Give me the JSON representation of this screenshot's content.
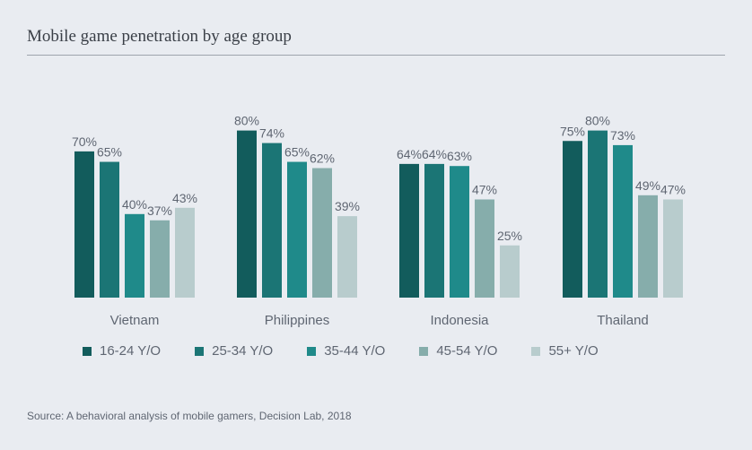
{
  "header": {
    "title": "Mobile game penetration by age group"
  },
  "source": "Source: A behavioral analysis of mobile gamers, Decision Lab, 2018",
  "colors": [
    "#125c5c",
    "#1b7575",
    "#1f8a8a",
    "#86adab",
    "#b8cccd"
  ],
  "chart_data": {
    "type": "bar",
    "title": "Mobile game penetration by age group",
    "categories": [
      "Vietnam",
      "Philippines",
      "Indonesia",
      "Thailand"
    ],
    "series": [
      {
        "name": "16-24 Y/O",
        "values": [
          70,
          80,
          64,
          75
        ]
      },
      {
        "name": "25-34 Y/O",
        "values": [
          65,
          74,
          64,
          80
        ]
      },
      {
        "name": "35-44 Y/O",
        "values": [
          40,
          65,
          63,
          73
        ]
      },
      {
        "name": "45-54 Y/O",
        "values": [
          37,
          62,
          47,
          49
        ]
      },
      {
        "name": "55+ Y/O",
        "values": [
          43,
          39,
          25,
          47
        ]
      }
    ],
    "value_suffix": "%",
    "ylim": [
      0,
      80
    ],
    "grid": false,
    "legend_position": "bottom",
    "xlabel": "",
    "ylabel": ""
  }
}
